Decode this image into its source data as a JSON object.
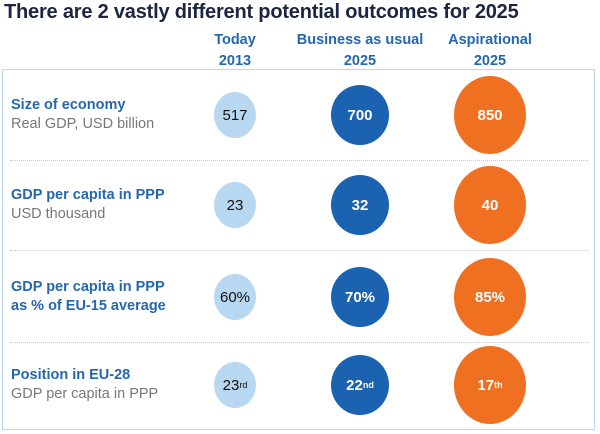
{
  "title": "There are 2 vastly different potential outcomes for 2025",
  "columns": [
    {
      "line1": "Today",
      "line2": "2013"
    },
    {
      "line1": "Business as usual",
      "line2": "2025"
    },
    {
      "line1": "Aspirational",
      "line2": "2025"
    }
  ],
  "colors": {
    "today": "#b8d7f1",
    "business_as_usual": "#1b62b0",
    "aspirational": "#f07022",
    "heading": "#2467b0"
  },
  "rows": [
    {
      "label": "Size of economy",
      "sublabel": "Real GDP, USD billion",
      "values": [
        {
          "v": "517",
          "s": ""
        },
        {
          "v": "700",
          "s": ""
        },
        {
          "v": "850",
          "s": ""
        }
      ]
    },
    {
      "label": "GDP per capita in PPP",
      "sublabel": "USD thousand",
      "values": [
        {
          "v": "23",
          "s": ""
        },
        {
          "v": "32",
          "s": ""
        },
        {
          "v": "40",
          "s": ""
        }
      ]
    },
    {
      "label": "GDP per capita in PPP",
      "label2": "as % of EU-15 average",
      "values": [
        {
          "v": "60%",
          "s": ""
        },
        {
          "v": "70%",
          "s": ""
        },
        {
          "v": "85%",
          "s": ""
        }
      ]
    },
    {
      "label": "Position in EU-28",
      "sublabel": "GDP per capita in PPP",
      "values": [
        {
          "v": "23",
          "s": "rd"
        },
        {
          "v": "22",
          "s": "nd"
        },
        {
          "v": "17",
          "s": "th"
        }
      ]
    }
  ]
}
